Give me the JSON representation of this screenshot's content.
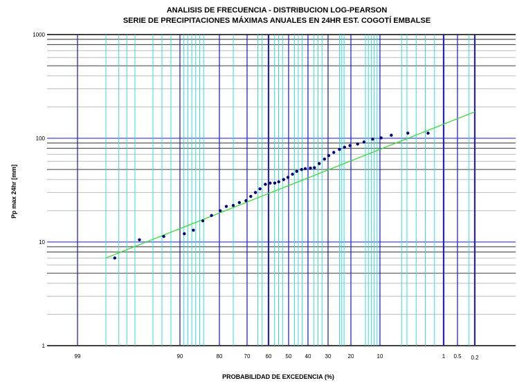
{
  "chart_data": {
    "type": "scatter",
    "title": "ANALISIS DE FRECUENCIA - DISTRIBUCION LOG-PEARSON",
    "subtitle": "SERIE DE PRECIPITACIONES MÁXIMAS ANUALES EN 24HR EST. COGOTÍ EMBALSE",
    "xlabel": "PROBABILIDAD DE EXCEDENCIA (%)",
    "ylabel": "Pp max 24hr [mm]",
    "yscale": "log",
    "ylim": [
      1,
      1000
    ],
    "y_ticks": [
      {
        "value": 1,
        "label": "1"
      },
      {
        "value": 10,
        "label": "10"
      },
      {
        "value": 100,
        "label": "100"
      },
      {
        "value": 1000,
        "label": "1000"
      }
    ],
    "x_ticks": [
      {
        "value": 99,
        "label": "99"
      },
      {
        "value": 90,
        "label": "90"
      },
      {
        "value": 80,
        "label": "80"
      },
      {
        "value": 70,
        "label": "70"
      },
      {
        "value": 60,
        "label": "60"
      },
      {
        "value": 50,
        "label": "50"
      },
      {
        "value": 40,
        "label": "40"
      },
      {
        "value": 30,
        "label": "30"
      },
      {
        "value": 20,
        "label": "20"
      },
      {
        "value": 10,
        "label": "10"
      },
      {
        "value": 1,
        "label": "1"
      },
      {
        "value": 0.5,
        "label": "0.5"
      },
      {
        "value": 0.2,
        "label": "0.2"
      }
    ],
    "grid": true,
    "colors": {
      "points": "#00007f",
      "fit_line": "#33dd33",
      "grid_major_blue": "#2222cc",
      "grid_minor_cyan": "#33dddd",
      "grid_horizontal": "#555555",
      "grid_horizontal_light": "#bbbbbb",
      "decade_band": "#8888ff"
    },
    "series": [
      {
        "type": "scatter",
        "x": [
          97.5,
          94.5,
          91.8,
          88.9,
          86.6,
          84.2,
          82.0,
          79.7,
          77.5,
          75.0,
          72.8,
          70.4,
          68.3,
          66.1,
          64.0,
          61.5,
          59.2,
          56.9,
          54.9,
          52.5,
          50.3,
          48.0,
          45.8,
          43.3,
          41.4,
          38.8,
          36.8,
          34.4,
          31.8,
          29.7,
          27.5,
          25.0,
          22.8,
          20.4,
          17.7,
          15.5,
          12.5,
          9.8,
          7.9,
          4.9,
          2.7
        ],
        "y": [
          7.0,
          10.5,
          11.3,
          12.0,
          13.0,
          16.0,
          18.0,
          20.0,
          22.0,
          22.5,
          24.0,
          25.0,
          27.5,
          30.0,
          32.5,
          36.0,
          37.0,
          37.0,
          38.0,
          40.0,
          42.0,
          45.0,
          48.0,
          50.0,
          51.0,
          51.5,
          52.0,
          57.0,
          63.0,
          68.0,
          73.0,
          78.0,
          82.0,
          85.0,
          88.0,
          92.0,
          98.0,
          101.0,
          107.0,
          112.0,
          112.0
        ]
      },
      {
        "type": "line",
        "x": [
          98.6,
          0.2
        ],
        "y": [
          7.0,
          180.0
        ]
      }
    ]
  }
}
